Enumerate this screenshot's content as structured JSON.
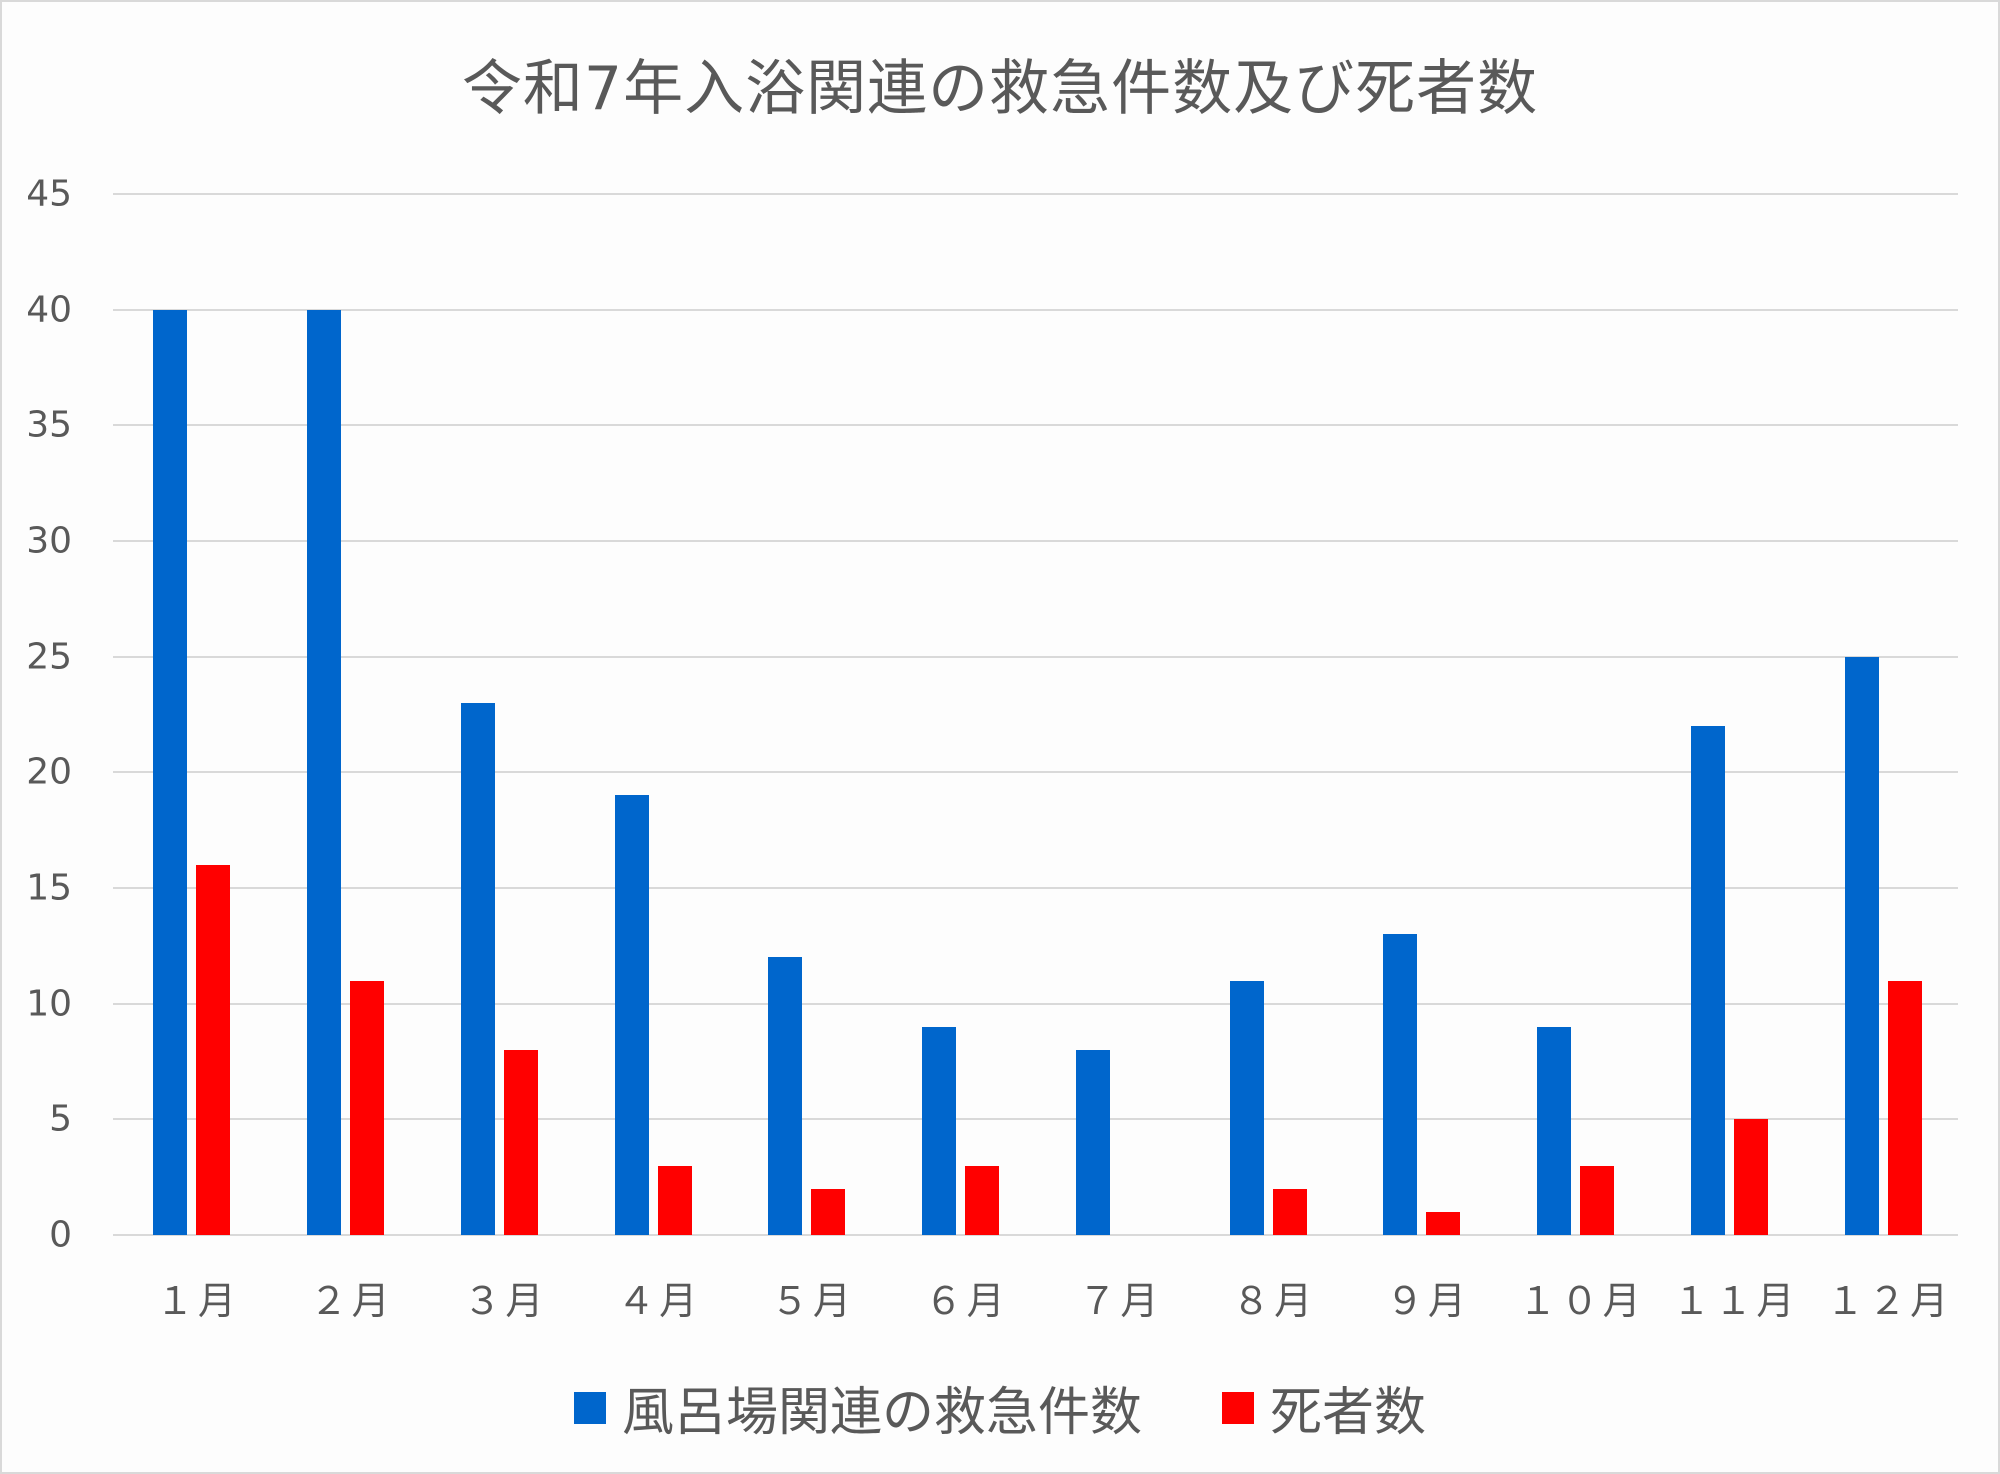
{
  "chart_data": {
    "type": "bar",
    "title": "令和7年入浴関連の救急件数及び死者数",
    "xlabel": "",
    "ylabel": "",
    "categories": [
      "１月",
      "２月",
      "３月",
      "４月",
      "５月",
      "６月",
      "７月",
      "８月",
      "９月",
      "１０月",
      "１１月",
      "１２月"
    ],
    "series": [
      {
        "name": "風呂場関連の救急件数",
        "color": "#0066cc",
        "values": [
          40,
          40,
          23,
          19,
          12,
          9,
          8,
          11,
          13,
          9,
          22,
          25
        ]
      },
      {
        "name": "死者数",
        "color": "#ff0000",
        "values": [
          16,
          11,
          8,
          3,
          2,
          3,
          0,
          2,
          1,
          3,
          5,
          11
        ]
      }
    ],
    "ylim": [
      0,
      45
    ],
    "yticks": [
      0,
      5,
      10,
      15,
      20,
      25,
      30,
      35,
      40,
      45
    ],
    "grid": true,
    "legend_position": "bottom"
  },
  "ytick_labels": [
    "0",
    "5",
    "10",
    "15",
    "20",
    "25",
    "30",
    "35",
    "40",
    "45"
  ],
  "legend": {
    "series0": "風呂場関連の救急件数",
    "series1": "死者数"
  }
}
